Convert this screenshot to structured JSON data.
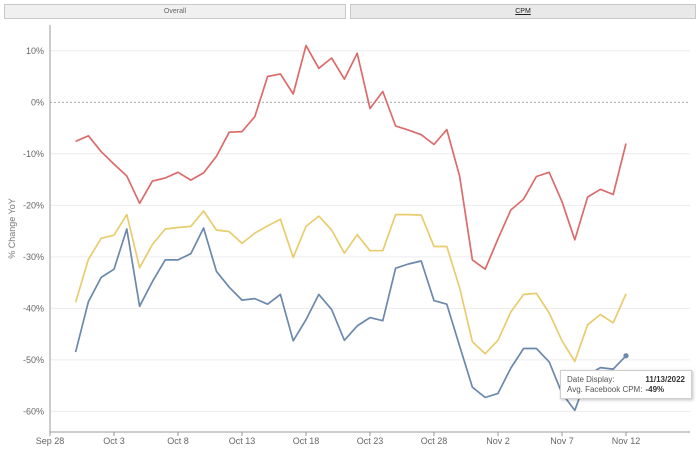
{
  "tabs": [
    {
      "label": "Overall",
      "active": false
    },
    {
      "label": "CPM",
      "active": true
    }
  ],
  "tooltip": {
    "date_label": "Date Display:",
    "date_value": "11/13/2022",
    "metric_label": "Avg. Facebook CPM:",
    "metric_value": "-49%"
  },
  "chart_data": {
    "type": "line",
    "title": "",
    "xlabel": "",
    "ylabel": "% Change YoY",
    "x_start": "2022-09-28",
    "x_end": "2022-11-17",
    "x_ticks": [
      {
        "date": "2022-09-28",
        "label": "Sep 28"
      },
      {
        "date": "2022-10-03",
        "label": "Oct 3"
      },
      {
        "date": "2022-10-08",
        "label": "Oct 8"
      },
      {
        "date": "2022-10-13",
        "label": "Oct 13"
      },
      {
        "date": "2022-10-18",
        "label": "Oct 18"
      },
      {
        "date": "2022-10-23",
        "label": "Oct 23"
      },
      {
        "date": "2022-10-28",
        "label": "Oct 28"
      },
      {
        "date": "2022-11-02",
        "label": "Nov 2"
      },
      {
        "date": "2022-11-07",
        "label": "Nov 7"
      },
      {
        "date": "2022-11-12",
        "label": "Nov 12"
      }
    ],
    "y_ticks": [
      {
        "value": 10,
        "label": "10%"
      },
      {
        "value": 0,
        "label": "0%"
      },
      {
        "value": -10,
        "label": "-10%"
      },
      {
        "value": -20,
        "label": "-20%"
      },
      {
        "value": -30,
        "label": "-30%"
      },
      {
        "value": -40,
        "label": "-40%"
      },
      {
        "value": -50,
        "label": "-50%"
      },
      {
        "value": -60,
        "label": "-60%"
      }
    ],
    "ylim": [
      -64,
      15
    ],
    "grid": true,
    "series": [
      {
        "color": "#dc6b6b",
        "points": [
          [
            "2022-09-30",
            -7.6
          ],
          [
            "2022-10-01",
            -6.5
          ],
          [
            "2022-10-02",
            -9.6
          ],
          [
            "2022-10-03",
            -12
          ],
          [
            "2022-10-04",
            -14.3
          ],
          [
            "2022-10-05",
            -19.6
          ],
          [
            "2022-10-06",
            -15.3
          ],
          [
            "2022-10-07",
            -14.7
          ],
          [
            "2022-10-08",
            -13.6
          ],
          [
            "2022-10-09",
            -15.1
          ],
          [
            "2022-10-10",
            -13.7
          ],
          [
            "2022-10-11",
            -10.5
          ],
          [
            "2022-10-12",
            -5.8
          ],
          [
            "2022-10-13",
            -5.7
          ],
          [
            "2022-10-14",
            -2.8
          ],
          [
            "2022-10-15",
            5
          ],
          [
            "2022-10-16",
            5.5
          ],
          [
            "2022-10-17",
            1.6
          ],
          [
            "2022-10-18",
            11
          ],
          [
            "2022-10-19",
            6.6
          ],
          [
            "2022-10-20",
            8.6
          ],
          [
            "2022-10-21",
            4.5
          ],
          [
            "2022-10-22",
            9.5
          ],
          [
            "2022-10-23",
            -1.2
          ],
          [
            "2022-10-24",
            2.1
          ],
          [
            "2022-10-25",
            -4.6
          ],
          [
            "2022-10-26",
            -5.4
          ],
          [
            "2022-10-27",
            -6.3
          ],
          [
            "2022-10-28",
            -8.2
          ],
          [
            "2022-10-29",
            -5.3
          ],
          [
            "2022-10-30",
            -14.3
          ],
          [
            "2022-10-31",
            -30.6
          ],
          [
            "2022-11-01",
            -32.4
          ],
          [
            "2022-11-02",
            -26.5
          ],
          [
            "2022-11-03",
            -20.9
          ],
          [
            "2022-11-04",
            -18.8
          ],
          [
            "2022-11-05",
            -14.4
          ],
          [
            "2022-11-06",
            -13.6
          ],
          [
            "2022-11-07",
            -19.3
          ],
          [
            "2022-11-08",
            -26.7
          ],
          [
            "2022-11-09",
            -18.4
          ],
          [
            "2022-11-10",
            -16.9
          ],
          [
            "2022-11-11",
            -17.9
          ],
          [
            "2022-11-12",
            -8
          ]
        ]
      },
      {
        "color": "#e8cc6e",
        "points": [
          [
            "2022-09-30",
            -38.8
          ],
          [
            "2022-10-01",
            -30.5
          ],
          [
            "2022-10-02",
            -26.4
          ],
          [
            "2022-10-03",
            -25.8
          ],
          [
            "2022-10-04",
            -21.8
          ],
          [
            "2022-10-05",
            -32.1
          ],
          [
            "2022-10-06",
            -27.6
          ],
          [
            "2022-10-07",
            -24.6
          ],
          [
            "2022-10-08",
            -24.3
          ],
          [
            "2022-10-09",
            -24.1
          ],
          [
            "2022-10-10",
            -21.1
          ],
          [
            "2022-10-11",
            -24.8
          ],
          [
            "2022-10-12",
            -25.1
          ],
          [
            "2022-10-13",
            -27.4
          ],
          [
            "2022-10-14",
            -25.4
          ],
          [
            "2022-10-15",
            -24
          ],
          [
            "2022-10-16",
            -22.7
          ],
          [
            "2022-10-17",
            -30.1
          ],
          [
            "2022-10-18",
            -24.1
          ],
          [
            "2022-10-19",
            -22.1
          ],
          [
            "2022-10-20",
            -24.8
          ],
          [
            "2022-10-21",
            -29.3
          ],
          [
            "2022-10-22",
            -25.7
          ],
          [
            "2022-10-23",
            -28.8
          ],
          [
            "2022-10-24",
            -28.8
          ],
          [
            "2022-10-25",
            -21.8
          ],
          [
            "2022-10-26",
            -21.8
          ],
          [
            "2022-10-27",
            -21.9
          ],
          [
            "2022-10-28",
            -28
          ],
          [
            "2022-10-29",
            -28
          ],
          [
            "2022-10-30",
            -36
          ],
          [
            "2022-10-31",
            -46.5
          ],
          [
            "2022-11-01",
            -48.8
          ],
          [
            "2022-11-02",
            -46.2
          ],
          [
            "2022-11-03",
            -40.7
          ],
          [
            "2022-11-04",
            -37.3
          ],
          [
            "2022-11-05",
            -37.1
          ],
          [
            "2022-11-06",
            -40.9
          ],
          [
            "2022-11-07",
            -46.3
          ],
          [
            "2022-11-08",
            -50.3
          ],
          [
            "2022-11-09",
            -43.2
          ],
          [
            "2022-11-10",
            -41.2
          ],
          [
            "2022-11-11",
            -42.8
          ],
          [
            "2022-11-12",
            -37.2
          ]
        ]
      },
      {
        "color": "#6b88ad",
        "points": [
          [
            "2022-09-30",
            -48.5
          ],
          [
            "2022-10-01",
            -38.7
          ],
          [
            "2022-10-02",
            -34
          ],
          [
            "2022-10-03",
            -32.4
          ],
          [
            "2022-10-04",
            -24.6
          ],
          [
            "2022-10-05",
            -39.6
          ],
          [
            "2022-10-06",
            -34.8
          ],
          [
            "2022-10-07",
            -30.6
          ],
          [
            "2022-10-08",
            -30.6
          ],
          [
            "2022-10-09",
            -29.4
          ],
          [
            "2022-10-10",
            -24.4
          ],
          [
            "2022-10-11",
            -32.8
          ],
          [
            "2022-10-12",
            -35.9
          ],
          [
            "2022-10-13",
            -38.4
          ],
          [
            "2022-10-14",
            -38.1
          ],
          [
            "2022-10-15",
            -39.2
          ],
          [
            "2022-10-16",
            -37.3
          ],
          [
            "2022-10-17",
            -46.3
          ],
          [
            "2022-10-18",
            -42.2
          ],
          [
            "2022-10-19",
            -37.3
          ],
          [
            "2022-10-20",
            -40.2
          ],
          [
            "2022-10-21",
            -46.2
          ],
          [
            "2022-10-22",
            -43.4
          ],
          [
            "2022-10-23",
            -41.8
          ],
          [
            "2022-10-24",
            -42.4
          ],
          [
            "2022-10-25",
            -32.2
          ],
          [
            "2022-10-26",
            -31.4
          ],
          [
            "2022-10-27",
            -30.8
          ],
          [
            "2022-10-28",
            -38.5
          ],
          [
            "2022-10-29",
            -39.2
          ],
          [
            "2022-10-30",
            -47.3
          ],
          [
            "2022-10-31",
            -55.3
          ],
          [
            "2022-11-01",
            -57.3
          ],
          [
            "2022-11-02",
            -56.5
          ],
          [
            "2022-11-03",
            -51.6
          ],
          [
            "2022-11-04",
            -47.8
          ],
          [
            "2022-11-05",
            -47.8
          ],
          [
            "2022-11-06",
            -50.4
          ],
          [
            "2022-11-07",
            -56.5
          ],
          [
            "2022-11-08",
            -59.8
          ],
          [
            "2022-11-09",
            -53
          ],
          [
            "2022-11-10",
            -51.5
          ],
          [
            "2022-11-11",
            -51.8
          ],
          [
            "2022-11-12",
            -49.2
          ]
        ]
      }
    ],
    "highlight": {
      "series_index": 2,
      "date": "2022-11-12"
    }
  }
}
